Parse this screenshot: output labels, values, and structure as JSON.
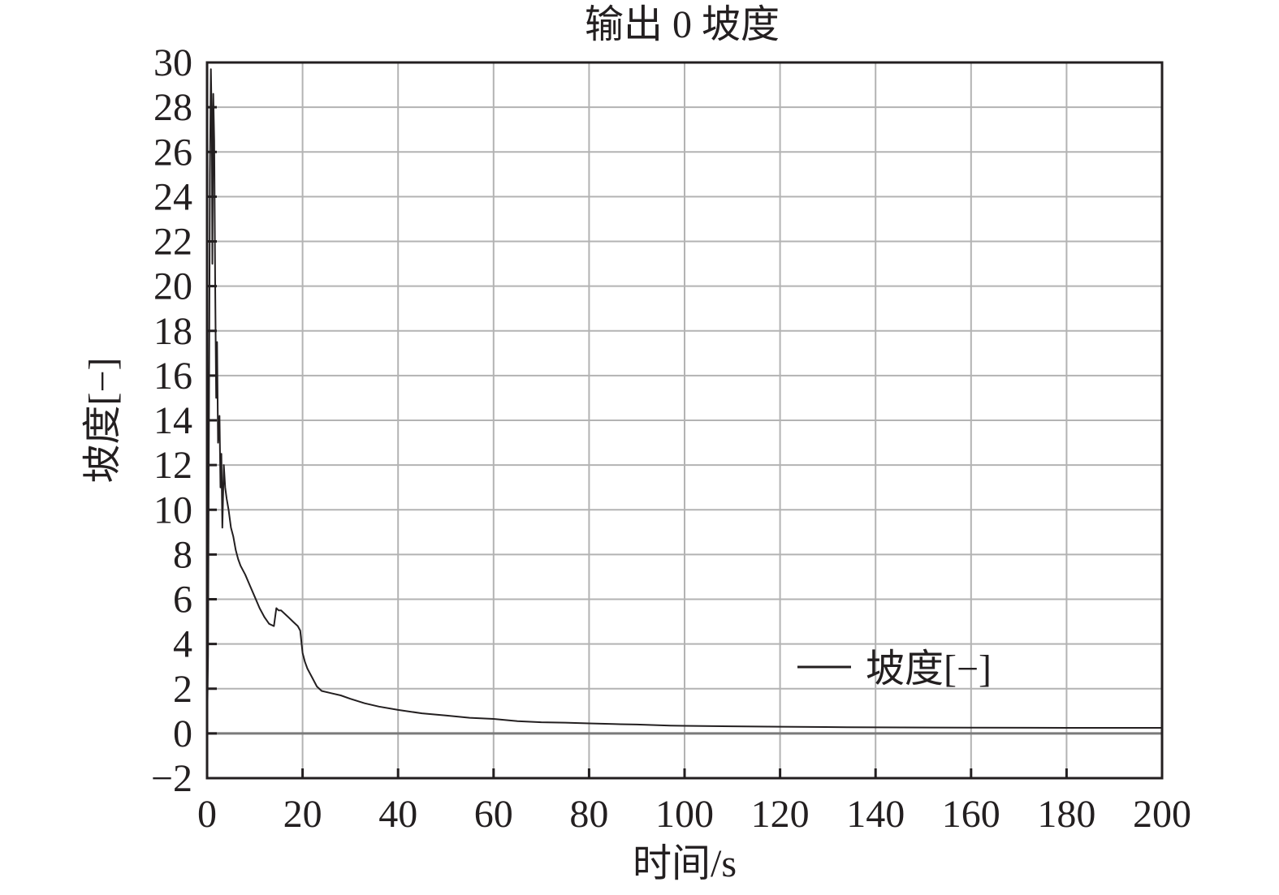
{
  "chart_data": {
    "type": "line",
    "title": "输出 0 坡度",
    "xlabel": "时间/s",
    "ylabel": "坡度[−]",
    "xlim": [
      0,
      200
    ],
    "ylim": [
      -2,
      30
    ],
    "xticks": [
      0,
      20,
      40,
      60,
      80,
      100,
      120,
      140,
      160,
      180,
      200
    ],
    "yticks": [
      -2,
      0,
      2,
      4,
      6,
      8,
      10,
      12,
      14,
      16,
      18,
      20,
      22,
      24,
      26,
      28,
      30
    ],
    "xtick_labels": [
      "0",
      "20",
      "40",
      "60",
      "80",
      "100",
      "120",
      "140",
      "160",
      "180",
      "200"
    ],
    "ytick_labels": [
      "−2",
      "0",
      "2",
      "4",
      "6",
      "8",
      "10",
      "12",
      "14",
      "16",
      "18",
      "20",
      "22",
      "24",
      "26",
      "28",
      "30"
    ],
    "grid": true,
    "legend_position": "bottom-right",
    "colors": {
      "line": "#231f20",
      "grid": "#b3b3b3",
      "frame": "#231f20",
      "zero_line": "#7a7a7a"
    },
    "series": [
      {
        "name": "坡度[−]",
        "x": [
          0,
          0.2,
          0.4,
          0.6,
          0.8,
          1.0,
          1.1,
          1.3,
          1.5,
          1.7,
          1.9,
          2.1,
          2.3,
          2.6,
          2.8,
          3.0,
          3.2,
          3.5,
          3.8,
          4.1,
          4.5,
          5.0,
          5.5,
          6.0,
          6.5,
          7.0,
          7.5,
          8.0,
          9.0,
          10.0,
          11.0,
          12.0,
          13.0,
          14.0,
          14.5,
          15.0,
          15.5,
          16.0,
          17.0,
          18.0,
          19.0,
          19.5,
          20.0,
          20.5,
          21.0,
          22.0,
          23.0,
          24.0,
          26.0,
          28.0,
          30.0,
          33.0,
          36.0,
          40.0,
          45.0,
          50.0,
          55.0,
          60.0,
          65.0,
          70.0,
          75.0,
          80.0,
          85.0,
          90.0,
          97.0,
          100.0,
          110.0,
          120.0,
          134.0,
          140.0,
          160.0,
          180.0,
          200.0
        ],
        "y": [
          0.0,
          3.5,
          15.0,
          25.0,
          29.7,
          27.0,
          21.0,
          28.6,
          26.5,
          20.0,
          15.0,
          17.5,
          13.0,
          14.2,
          11.0,
          12.5,
          9.2,
          12.0,
          11.0,
          10.5,
          10.0,
          9.2,
          8.8,
          8.2,
          7.8,
          7.5,
          7.3,
          7.1,
          6.6,
          6.1,
          5.6,
          5.2,
          4.9,
          4.8,
          5.6,
          5.5,
          5.5,
          5.4,
          5.2,
          5.0,
          4.8,
          4.6,
          3.6,
          3.2,
          2.9,
          2.5,
          2.1,
          1.9,
          1.8,
          1.7,
          1.55,
          1.35,
          1.2,
          1.05,
          0.9,
          0.8,
          0.7,
          0.65,
          0.55,
          0.5,
          0.48,
          0.45,
          0.42,
          0.4,
          0.35,
          0.34,
          0.32,
          0.3,
          0.28,
          0.27,
          0.26,
          0.25,
          0.25
        ]
      }
    ]
  }
}
